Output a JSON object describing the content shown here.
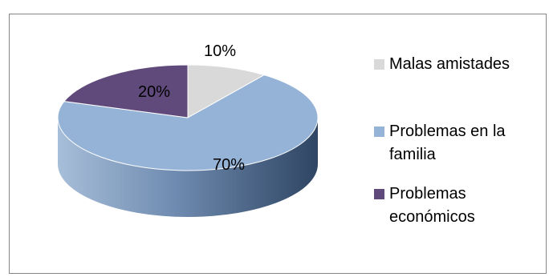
{
  "chart_data": {
    "type": "pie",
    "style": "3d",
    "categories": [
      "Malas amistades",
      "Problemas en la familia",
      "Problemas económicos"
    ],
    "values": [
      10,
      70,
      20
    ],
    "data_labels": [
      "10%",
      "70%",
      "20%"
    ],
    "colors": [
      "#d9d9d9",
      "#95b3d7",
      "#604a7b"
    ],
    "side_colors": [
      "#a6a6a6",
      "#4f6787",
      "#3f3151"
    ],
    "legend_position": "right",
    "title": ""
  }
}
